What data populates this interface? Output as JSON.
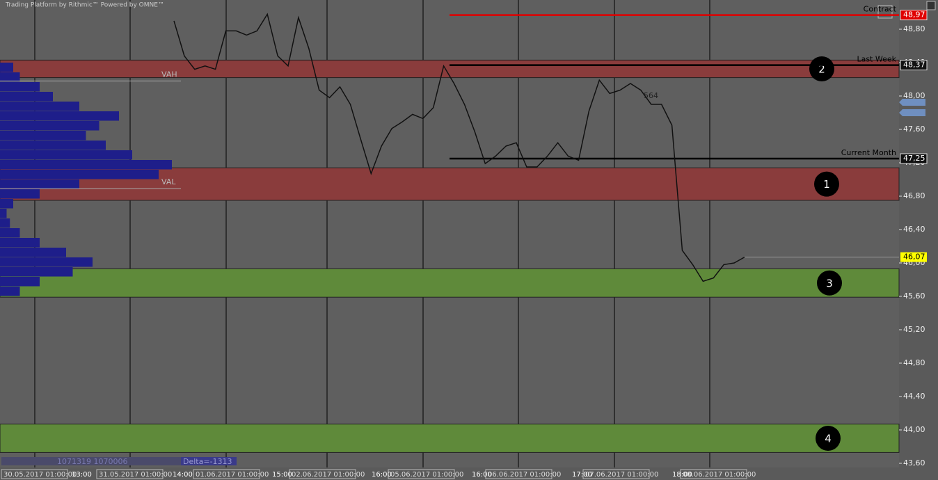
{
  "header": {
    "title": "Trading Platform by Rithmic™ Powered by OMNE™"
  },
  "chart_data": {
    "type": "line",
    "ylim": [
      43.55,
      49.15
    ],
    "yticks": [
      {
        "value": 43.6,
        "label": "43,60"
      },
      {
        "value": 44.0,
        "label": "44,00"
      },
      {
        "value": 44.4,
        "label": "44,40"
      },
      {
        "value": 44.8,
        "label": "44,80"
      },
      {
        "value": 45.2,
        "label": "45,20"
      },
      {
        "value": 45.6,
        "label": "45,60"
      },
      {
        "value": 46.0,
        "label": "46,00"
      },
      {
        "value": 46.4,
        "label": "46,40"
      },
      {
        "value": 46.8,
        "label": "46,80"
      },
      {
        "value": 47.2,
        "label": "47,20"
      },
      {
        "value": 47.6,
        "label": "47,60"
      },
      {
        "value": 48.0,
        "label": "48,00"
      },
      {
        "value": 48.4,
        "label": "48,40"
      },
      {
        "value": 48.8,
        "label": "48,80"
      }
    ],
    "time_labels": [
      "13:00",
      "14:00",
      "15:00",
      "16:00",
      "16:00",
      "17:00",
      "18:00"
    ],
    "date_labels": [
      "30.05.2017 01:00:00",
      "31.05.2017 01:00:00",
      "01.06.2017 01:00:00",
      "02.06.2017 01:00:00",
      "05.06.2017 01:00:00",
      "06.06.2017 01:00:00",
      "07.06.2017 01:00:00",
      "08.06.2017 01:00:00"
    ],
    "series": [
      {
        "color": "#111111",
        "values": [
          48.9,
          48.48,
          48.32,
          48.36,
          48.32,
          48.78,
          48.78,
          48.73,
          48.78,
          48.98,
          48.48,
          48.36,
          48.94,
          48.57,
          48.07,
          47.98,
          48.11,
          47.9,
          47.48,
          47.07,
          47.4,
          47.61,
          47.69,
          47.78,
          47.73,
          47.86,
          48.36,
          48.15,
          47.9,
          47.57,
          47.19,
          47.28,
          47.4,
          47.44,
          47.15,
          47.15,
          47.28,
          47.44,
          47.28,
          47.23,
          47.82,
          48.19,
          48.03,
          48.07,
          48.15,
          48.07,
          47.9,
          47.9,
          47.65,
          46.15,
          45.98,
          45.78,
          45.82,
          45.98,
          46.0,
          46.07
        ]
      }
    ],
    "zones": [
      {
        "label": "2",
        "low": 48.22,
        "high": 48.43,
        "color": "#8a3c3c"
      },
      {
        "label": "1",
        "low": 46.75,
        "high": 47.14,
        "color": "#8a3c3c"
      },
      {
        "label": "3",
        "low": 45.59,
        "high": 45.93,
        "color": "#5f8a3a"
      },
      {
        "label": "4",
        "low": 43.73,
        "high": 44.07,
        "color": "#5f8a3a"
      }
    ],
    "levels": [
      {
        "name": "Contract",
        "value": 48.97,
        "value_label": "48,97",
        "color": "#e00000"
      },
      {
        "name": "Last Week",
        "value": 48.37,
        "value_label": "48,37",
        "color": "#000000"
      },
      {
        "name": "Current Month",
        "value": 47.25,
        "value_label": "47,25",
        "color": "#000000"
      }
    ],
    "last_price": {
      "value": 46.07,
      "label": "46,07",
      "color": "#ffff00"
    },
    "value_area": {
      "high": 48.18,
      "high_label": "VAH",
      "low": 46.89,
      "low_label": "VAL"
    },
    "profile": {
      "color": "#1e1e8a",
      "ylim": [
        45.6,
        48.4
      ],
      "values": [
        20,
        30,
        60,
        80,
        120,
        180,
        150,
        130,
        160,
        200,
        260,
        240,
        120,
        60,
        20,
        10,
        15,
        30,
        60,
        100,
        140,
        110,
        60,
        30
      ]
    },
    "annotations": [
      "564"
    ],
    "footer": {
      "volumes": "1071319 1070006",
      "delta": "Delta=-1313"
    }
  }
}
